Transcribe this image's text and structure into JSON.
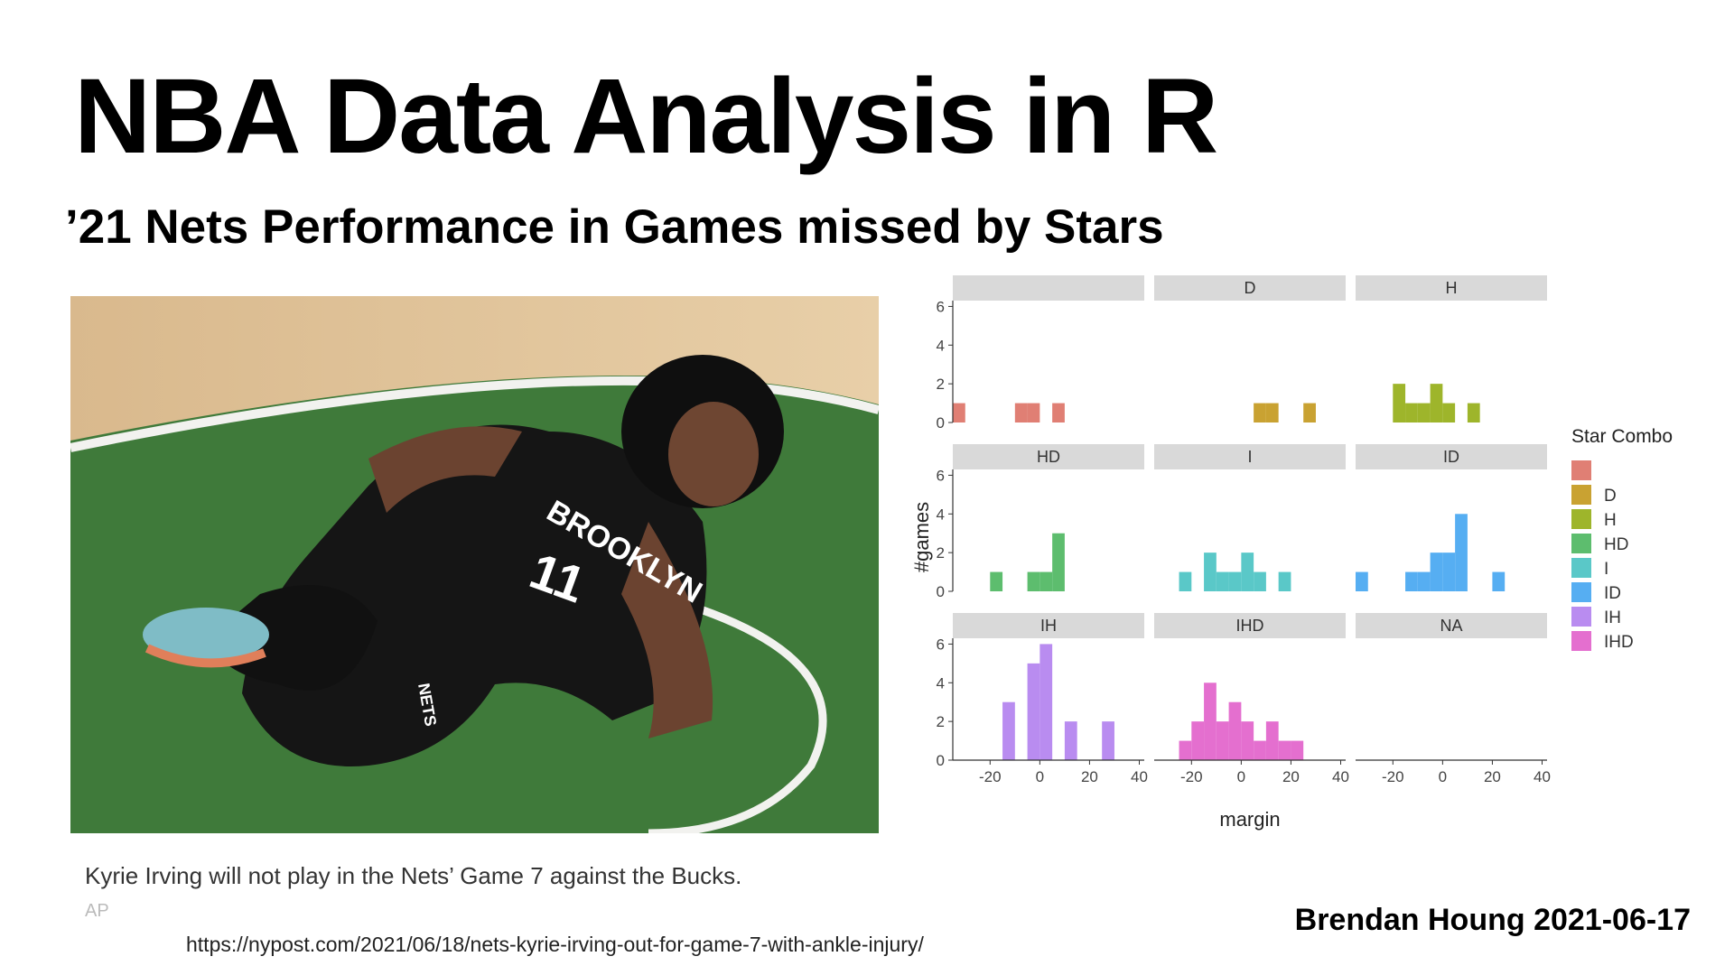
{
  "slide": {
    "title": "NBA Data Analysis in R",
    "subtitle": "’21 Nets Performance in Games missed by Stars",
    "photo": {
      "jersey_text": "BROOKLYN",
      "jersey_number": "11",
      "shorts_logo": "NETS",
      "court_color": "#3f7a3a"
    },
    "caption": "Kyrie Irving will not play in the Nets’ Game 7 against the Bucks.",
    "credit": "AP",
    "source_url": "https://nypost.com/2021/06/18/nets-kyrie-irving-out-for-game-7-with-ankle-injury/",
    "author": "Brendan Houng 2021-06-17"
  },
  "chart_data": {
    "type": "bar",
    "subtype": "faceted-histogram",
    "title": "",
    "xlabel": "margin",
    "ylabel": "#games",
    "xlim": [
      -35,
      42
    ],
    "ylim": [
      0,
      6.3
    ],
    "xticks": [
      -20,
      0,
      20,
      40
    ],
    "yticks": [
      0,
      2,
      4,
      6
    ],
    "bin_width": 5,
    "legend": {
      "title": "Star Combo",
      "placement": "right",
      "entries": [
        {
          "label": "",
          "color": "#e07f74"
        },
        {
          "label": "D",
          "color": "#c9a232"
        },
        {
          "label": "H",
          "color": "#9eb52b"
        },
        {
          "label": "HD",
          "color": "#5dbd6e"
        },
        {
          "label": "I",
          "color": "#5ac8c8"
        },
        {
          "label": "ID",
          "color": "#56aef2"
        },
        {
          "label": "IH",
          "color": "#b98cf0"
        },
        {
          "label": "IHD",
          "color": "#e46fcf"
        }
      ]
    },
    "facets": [
      {
        "label": "",
        "color": "#e07f74",
        "bins": [
          {
            "x0": -35,
            "x1": -30,
            "y": 1
          },
          {
            "x0": -10,
            "x1": -5,
            "y": 1
          },
          {
            "x0": -5,
            "x1": 0,
            "y": 1
          },
          {
            "x0": 5,
            "x1": 10,
            "y": 1
          }
        ]
      },
      {
        "label": "D",
        "color": "#c9a232",
        "bins": [
          {
            "x0": 5,
            "x1": 10,
            "y": 1
          },
          {
            "x0": 10,
            "x1": 15,
            "y": 1
          },
          {
            "x0": 25,
            "x1": 30,
            "y": 1
          }
        ]
      },
      {
        "label": "H",
        "color": "#9eb52b",
        "bins": [
          {
            "x0": -20,
            "x1": -15,
            "y": 2
          },
          {
            "x0": -15,
            "x1": -10,
            "y": 1
          },
          {
            "x0": -10,
            "x1": -5,
            "y": 1
          },
          {
            "x0": -5,
            "x1": 0,
            "y": 2
          },
          {
            "x0": 0,
            "x1": 5,
            "y": 1
          },
          {
            "x0": 10,
            "x1": 15,
            "y": 1
          }
        ]
      },
      {
        "label": "HD",
        "color": "#5dbd6e",
        "bins": [
          {
            "x0": -20,
            "x1": -15,
            "y": 1
          },
          {
            "x0": -5,
            "x1": 0,
            "y": 1
          },
          {
            "x0": 0,
            "x1": 5,
            "y": 1
          },
          {
            "x0": 5,
            "x1": 10,
            "y": 3
          }
        ]
      },
      {
        "label": "I",
        "color": "#5ac8c8",
        "bins": [
          {
            "x0": -25,
            "x1": -20,
            "y": 1
          },
          {
            "x0": -15,
            "x1": -10,
            "y": 2
          },
          {
            "x0": -10,
            "x1": -5,
            "y": 1
          },
          {
            "x0": -5,
            "x1": 0,
            "y": 1
          },
          {
            "x0": 0,
            "x1": 5,
            "y": 2
          },
          {
            "x0": 5,
            "x1": 10,
            "y": 1
          },
          {
            "x0": 15,
            "x1": 20,
            "y": 1
          }
        ]
      },
      {
        "label": "ID",
        "color": "#56aef2",
        "bins": [
          {
            "x0": -35,
            "x1": -30,
            "y": 1
          },
          {
            "x0": -15,
            "x1": -10,
            "y": 1
          },
          {
            "x0": -10,
            "x1": -5,
            "y": 1
          },
          {
            "x0": -5,
            "x1": 0,
            "y": 2
          },
          {
            "x0": 0,
            "x1": 5,
            "y": 2
          },
          {
            "x0": 5,
            "x1": 10,
            "y": 4
          },
          {
            "x0": 20,
            "x1": 25,
            "y": 1
          }
        ]
      },
      {
        "label": "IH",
        "color": "#b98cf0",
        "bins": [
          {
            "x0": -15,
            "x1": -10,
            "y": 3
          },
          {
            "x0": -5,
            "x1": 0,
            "y": 5
          },
          {
            "x0": 0,
            "x1": 5,
            "y": 6
          },
          {
            "x0": 10,
            "x1": 15,
            "y": 2
          },
          {
            "x0": 25,
            "x1": 30,
            "y": 2
          }
        ]
      },
      {
        "label": "IHD",
        "color": "#e46fcf",
        "bins": [
          {
            "x0": -25,
            "x1": -20,
            "y": 1
          },
          {
            "x0": -20,
            "x1": -15,
            "y": 2
          },
          {
            "x0": -15,
            "x1": -10,
            "y": 4
          },
          {
            "x0": -10,
            "x1": -5,
            "y": 2
          },
          {
            "x0": -5,
            "x1": 0,
            "y": 3
          },
          {
            "x0": 0,
            "x1": 5,
            "y": 2
          },
          {
            "x0": 5,
            "x1": 10,
            "y": 1
          },
          {
            "x0": 10,
            "x1": 15,
            "y": 2
          },
          {
            "x0": 15,
            "x1": 20,
            "y": 1
          },
          {
            "x0": 20,
            "x1": 25,
            "y": 1
          }
        ]
      },
      {
        "label": "NA",
        "color": "#cccccc",
        "bins": []
      }
    ]
  }
}
